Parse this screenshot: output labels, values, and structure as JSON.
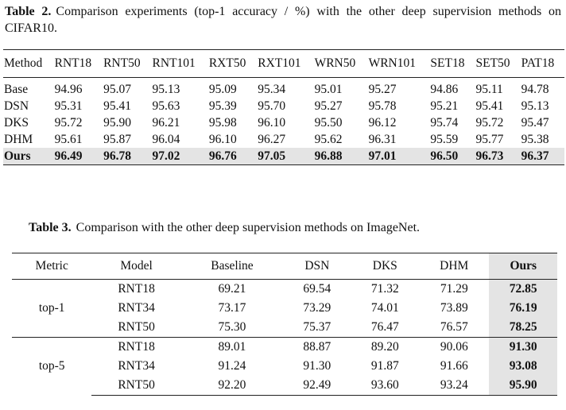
{
  "table2": {
    "label": "Table 2.",
    "caption": "Comparison experiments (top-1 accuracy / %) with the other deep supervision methods on CIFAR10.",
    "header": [
      "Method",
      "RNT18",
      "RNT50",
      "RNT101",
      "RXT50",
      "RXT101",
      "WRN50",
      "WRN101",
      "SET18",
      "SET50",
      "PAT18"
    ],
    "rows": [
      [
        "Base",
        "94.96",
        "95.07",
        "95.13",
        "95.09",
        "95.34",
        "95.01",
        "95.27",
        "94.86",
        "95.11",
        "94.78"
      ],
      [
        "DSN",
        "95.31",
        "95.41",
        "95.63",
        "95.39",
        "95.70",
        "95.27",
        "95.78",
        "95.21",
        "95.41",
        "95.13"
      ],
      [
        "DKS",
        "95.72",
        "95.90",
        "96.21",
        "95.98",
        "96.10",
        "95.50",
        "96.12",
        "95.74",
        "95.72",
        "95.47"
      ],
      [
        "DHM",
        "95.61",
        "95.87",
        "96.04",
        "96.10",
        "96.27",
        "95.62",
        "96.31",
        "95.59",
        "95.77",
        "95.38"
      ],
      [
        "Ours",
        "96.49",
        "96.78",
        "97.02",
        "96.76",
        "97.05",
        "96.88",
        "97.01",
        "96.50",
        "96.73",
        "96.37"
      ]
    ]
  },
  "table3": {
    "label": "Table 3.",
    "caption": "Comparison with the other deep supervision methods on ImageNet.",
    "header": [
      "Metric",
      "Model",
      "Baseline",
      "DSN",
      "DKS",
      "DHM",
      "Ours"
    ],
    "groups": [
      {
        "metric": "top-1",
        "rows": [
          [
            "RNT18",
            "69.21",
            "69.54",
            "71.32",
            "71.29",
            "72.85"
          ],
          [
            "RNT34",
            "73.17",
            "73.29",
            "74.01",
            "73.89",
            "76.19"
          ],
          [
            "RNT50",
            "75.30",
            "75.37",
            "76.47",
            "76.57",
            "78.25"
          ]
        ]
      },
      {
        "metric": "top-5",
        "rows": [
          [
            "RNT18",
            "89.01",
            "88.87",
            "89.20",
            "90.06",
            "91.30"
          ],
          [
            "RNT34",
            "91.24",
            "91.30",
            "91.87",
            "91.66",
            "93.08"
          ],
          [
            "RNT50",
            "92.20",
            "92.49",
            "93.60",
            "93.24",
            "95.90"
          ]
        ]
      }
    ]
  }
}
